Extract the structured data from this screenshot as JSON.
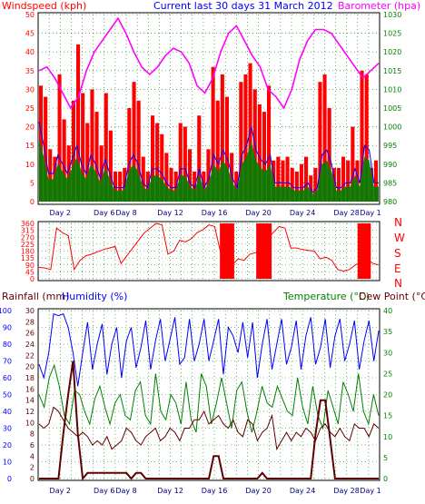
{
  "header": {
    "wind_label": "Windspeed (kph)",
    "title": "Current last 30 days 31 March 2012",
    "baro_label": "Barometer (hpa)"
  },
  "direction_compass": [
    "N",
    "W",
    "S",
    "E",
    "N"
  ],
  "bottom_header": {
    "rain_label": "Rainfall (mm)",
    "humidity_label": "Humidity (%)",
    "temp_label": "Temperature (°C)",
    "dew_label": "Dew Point (°C)"
  },
  "x_tick_labels": [
    "Day 2",
    "Day 6",
    "Day 8",
    "Day 12",
    "Day 16",
    "Day 20",
    "Day 24",
    "Day 28",
    "Day 1"
  ],
  "colors": {
    "wind": "#ff0000",
    "gust": "#ff0000",
    "avg_wind": "#0000ff",
    "baro": "#ff00ff",
    "green_band": "#008000",
    "humidity": "#0000ff",
    "temperature": "#008000",
    "dewpoint": "#600000",
    "rain": "#600000",
    "grid": "#008000",
    "frame": "#000000",
    "axis_text_left": "#ff0000",
    "axis_text_right": "#008000"
  },
  "chart_data": [
    {
      "type": "area",
      "name": "top",
      "title": "Current last 30 days 31 March 2012",
      "ylabel_left": "Windspeed (kph)",
      "ylabel_right": "Barometer (hpa)",
      "y_left_ticks": [
        0,
        5,
        10,
        15,
        20,
        25,
        30,
        35,
        40,
        45,
        50
      ],
      "y_right_ticks": [
        980,
        985,
        990,
        995,
        1000,
        1005,
        1010,
        1015,
        1020,
        1025,
        1030
      ],
      "ylim_left": [
        0,
        50
      ],
      "ylim_right": [
        980,
        1030
      ],
      "x_labels": [
        "Day 2",
        "Day 6",
        "Day 8",
        "Day 12",
        "Day 16",
        "Day 20",
        "Day 24",
        "Day 28",
        "Day 1"
      ],
      "barometer": [
        1015,
        1016,
        1013,
        1009,
        1005,
        1008,
        1015,
        1020,
        1023,
        1026,
        1029,
        1025,
        1020,
        1016,
        1014,
        1016,
        1019,
        1021,
        1020,
        1017,
        1011,
        1009,
        1013,
        1020,
        1025,
        1027,
        1023,
        1019,
        1016,
        1010,
        1008,
        1005,
        1010,
        1018,
        1023,
        1026,
        1026,
        1025,
        1022,
        1019,
        1016,
        1013,
        1015,
        1017
      ],
      "gust_peak": [
        31,
        28,
        14,
        12,
        34,
        22,
        15,
        27,
        42,
        29,
        21,
        30,
        24,
        15,
        29,
        19,
        8,
        8,
        9,
        25,
        32,
        27,
        12,
        8,
        23,
        21,
        18,
        13,
        9,
        8,
        21,
        20,
        14,
        8,
        23,
        8,
        14,
        36,
        27,
        34,
        28,
        13,
        8,
        32,
        34,
        37,
        30,
        26,
        24,
        31,
        11,
        12,
        11,
        12,
        9,
        8,
        10,
        12,
        7,
        9,
        32,
        34,
        25,
        9,
        9,
        12,
        11,
        20,
        11,
        35,
        34,
        9,
        11
      ],
      "wind_avg": [
        17,
        12,
        6,
        6,
        10,
        8,
        6,
        9,
        12,
        8,
        6,
        10,
        8,
        5,
        9,
        6,
        3,
        3,
        3,
        8,
        10,
        8,
        4,
        3,
        7,
        7,
        6,
        4,
        3,
        3,
        7,
        7,
        4,
        3,
        7,
        3,
        5,
        10,
        8,
        11,
        9,
        5,
        3,
        10,
        12,
        16,
        11,
        9,
        8,
        10,
        4,
        4,
        4,
        4,
        3,
        3,
        3,
        4,
        2,
        3,
        10,
        11,
        8,
        3,
        3,
        4,
        4,
        7,
        4,
        12,
        11,
        4,
        4
      ]
    },
    {
      "type": "line",
      "name": "direction",
      "y_ticks": [
        0,
        45,
        90,
        135,
        180,
        225,
        270,
        315,
        360
      ],
      "ylim": [
        0,
        360
      ],
      "x_labels": [],
      "values": [
        75,
        70,
        60,
        330,
        300,
        280,
        60,
        120,
        150,
        160,
        175,
        190,
        200,
        210,
        100,
        150,
        200,
        250,
        300,
        330,
        360,
        350,
        160,
        180,
        250,
        240,
        260,
        300,
        320,
        350,
        340,
        170,
        150,
        90,
        130,
        120,
        160,
        170,
        200,
        260,
        300,
        340,
        330,
        200,
        200,
        190,
        185,
        180,
        130,
        140,
        120,
        60,
        50,
        60,
        90,
        110,
        130,
        100,
        90
      ]
    },
    {
      "type": "line",
      "name": "bottom",
      "ylabel_left": "Rainfall (mm)",
      "ylabel_left2": "Humidity (%)",
      "ylabel_right": "Temperature (°C)",
      "ylabel_right2": "Dew Point (°C)",
      "y_left_ticks": [
        0,
        10,
        20,
        30,
        40,
        50,
        60,
        70,
        80,
        90,
        100
      ],
      "y_left2_ticks": [
        0,
        2,
        4,
        6,
        8,
        10,
        12,
        14,
        16,
        18,
        20,
        22,
        24,
        26,
        28,
        30
      ],
      "y_right_ticks": [
        0,
        5,
        10,
        15,
        20,
        25,
        30,
        35,
        40
      ],
      "ylim_humidity": [
        0,
        100
      ],
      "ylim_rain": [
        0,
        30
      ],
      "ylim_temp": [
        0,
        40
      ],
      "x_labels": [
        "Day 2",
        "Day 6",
        "Day 8",
        "Day 12",
        "Day 16",
        "Day 20",
        "Day 24",
        "Day 28",
        "Day 1"
      ],
      "humidity": [
        68,
        60,
        75,
        98,
        97,
        98,
        90,
        75,
        55,
        75,
        93,
        65,
        80,
        92,
        62,
        80,
        90,
        60,
        82,
        90,
        66,
        78,
        94,
        65,
        82,
        95,
        70,
        83,
        96,
        68,
        72,
        95,
        70,
        80,
        95,
        70,
        82,
        95,
        62,
        90,
        85,
        75,
        93,
        72,
        93,
        60,
        80,
        95,
        65,
        80,
        95,
        68,
        78,
        94,
        65,
        85,
        96,
        68,
        78,
        95,
        66,
        85,
        95,
        70,
        80,
        94,
        65,
        82,
        94,
        70,
        88
      ],
      "temperature": [
        20,
        17,
        24,
        27,
        22,
        15,
        13,
        21,
        20,
        16,
        13,
        19,
        22,
        17,
        13,
        18,
        20,
        15,
        14,
        21,
        23,
        15,
        13,
        25,
        16,
        14,
        20,
        18,
        13,
        23,
        14,
        11,
        25,
        22,
        13,
        18,
        24,
        18,
        12,
        21,
        23,
        16,
        11,
        16,
        22,
        18,
        17,
        22,
        19,
        16,
        15,
        24,
        17,
        13,
        22,
        15,
        12,
        21,
        17,
        13,
        23,
        20,
        16,
        25,
        16,
        13,
        20,
        15
      ],
      "dewpoint": [
        13,
        12,
        13,
        17,
        16,
        14,
        12,
        11,
        10,
        11,
        10,
        8,
        9,
        8,
        10,
        7,
        8,
        9,
        12,
        11,
        9,
        8,
        10,
        11,
        12,
        9,
        10,
        12,
        11,
        9,
        12,
        12,
        14,
        14,
        16,
        13,
        14,
        15,
        13,
        12,
        14,
        11,
        10,
        14,
        13,
        9,
        11,
        12,
        15,
        7,
        9,
        11,
        9,
        11,
        10,
        12,
        11,
        9,
        12,
        13,
        11,
        10,
        12,
        10,
        9,
        13,
        12,
        12,
        10,
        13,
        12
      ],
      "rain": [
        0,
        0,
        0,
        0,
        0,
        8,
        15,
        21,
        8,
        0,
        1,
        1,
        1,
        1,
        1,
        1,
        1,
        1,
        1,
        0,
        1,
        1,
        0,
        0,
        0,
        0,
        0,
        0,
        0,
        0,
        0,
        0,
        0,
        0,
        0,
        0,
        4,
        4,
        0,
        0,
        0,
        0,
        0,
        0,
        0,
        0,
        1,
        0,
        0,
        0,
        0,
        0,
        0,
        0,
        0,
        0,
        0,
        8,
        14,
        14,
        7,
        0,
        0,
        0,
        0,
        0,
        0,
        0,
        0,
        0,
        0
      ]
    }
  ]
}
